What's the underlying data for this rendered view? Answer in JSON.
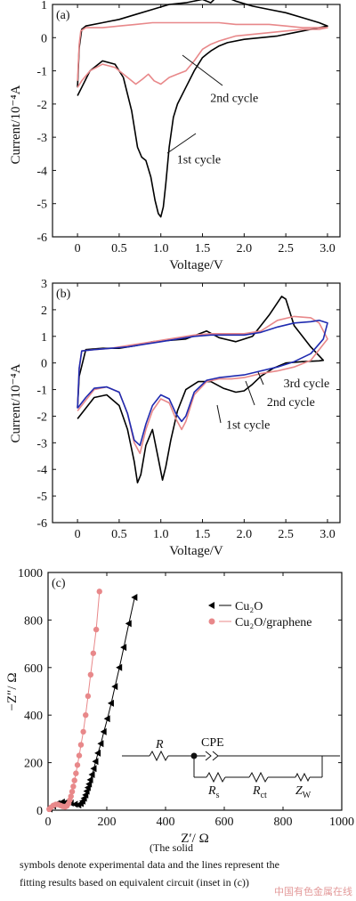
{
  "caption": {
    "line1": "(The solid",
    "line2": "symbols denote experimental data and the lines represent the",
    "line3": "fitting results based on equivalent circuit (inset in (c))"
  },
  "watermark": "中国有色金属在线",
  "chart_data": [
    {
      "type": "line",
      "panel_label": "(a)",
      "xlabel": "Voltage/V",
      "ylabel": "Current/10⁻⁴A",
      "xlim": [
        -0.3,
        3.15
      ],
      "ylim": [
        -6,
        1
      ],
      "xticks": [
        "0",
        "0.5",
        "1.0",
        "1.5",
        "2.0",
        "2.5",
        "3.0"
      ],
      "yticks": [
        "1",
        "0",
        "-1",
        "-2",
        "-3",
        "-4",
        "-5",
        "-6"
      ],
      "series": [
        {
          "name": "1st cycle",
          "color": "#000000",
          "x": [
            0.0,
            0.05,
            0.15,
            0.3,
            0.45,
            0.55,
            0.65,
            0.72,
            0.77,
            0.82,
            0.88,
            0.93,
            0.97,
            1.0,
            1.03,
            1.06,
            1.1,
            1.15,
            1.2,
            1.3,
            1.4,
            1.5,
            1.55,
            1.6,
            1.7,
            1.8,
            2.0,
            2.2,
            2.4,
            2.6,
            2.8,
            3.0,
            2.9,
            2.7,
            2.5,
            2.3,
            2.1,
            1.9,
            1.8,
            1.7,
            1.6,
            1.5,
            1.3,
            1.1,
            0.9,
            0.7,
            0.5,
            0.3,
            0.1,
            0.05,
            0.02,
            0.0
          ],
          "y": [
            -1.75,
            -1.5,
            -1.0,
            -0.7,
            -0.8,
            -1.2,
            -2.2,
            -3.3,
            -3.6,
            -3.7,
            -4.2,
            -4.9,
            -5.3,
            -5.4,
            -5.1,
            -4.4,
            -3.3,
            -2.4,
            -2.0,
            -1.5,
            -1.0,
            -0.6,
            -0.5,
            -0.4,
            -0.25,
            -0.15,
            -0.05,
            0.0,
            0.05,
            0.15,
            0.25,
            0.35,
            0.45,
            0.6,
            0.75,
            0.85,
            0.95,
            1.1,
            1.2,
            1.3,
            1.05,
            1.15,
            1.05,
            1.0,
            0.85,
            0.7,
            0.55,
            0.45,
            0.35,
            0.25,
            -0.3,
            -1.5
          ]
        },
        {
          "name": "2nd cycle",
          "color": "#e8888a",
          "x": [
            0.0,
            0.05,
            0.15,
            0.3,
            0.45,
            0.6,
            0.7,
            0.78,
            0.85,
            0.92,
            1.0,
            1.1,
            1.2,
            1.3,
            1.4,
            1.5,
            1.6,
            1.7,
            1.9,
            2.1,
            2.3,
            2.5,
            2.7,
            2.9,
            3.0,
            2.9,
            2.7,
            2.5,
            2.3,
            2.1,
            1.9,
            1.7,
            1.5,
            1.3,
            1.1,
            0.9,
            0.7,
            0.5,
            0.3,
            0.1,
            0.04,
            0.02,
            0.0
          ],
          "y": [
            -1.5,
            -1.3,
            -1.0,
            -0.8,
            -0.9,
            -1.2,
            -1.4,
            -1.25,
            -1.1,
            -1.3,
            -1.4,
            -1.2,
            -1.1,
            -1.0,
            -0.7,
            -0.35,
            -0.2,
            -0.1,
            0.05,
            0.1,
            0.15,
            0.2,
            0.25,
            0.25,
            0.3,
            0.3,
            0.3,
            0.35,
            0.4,
            0.4,
            0.4,
            0.45,
            0.45,
            0.45,
            0.45,
            0.45,
            0.4,
            0.35,
            0.3,
            0.3,
            0.2,
            -0.2,
            -1.3
          ]
        }
      ],
      "annotations": [
        {
          "text": "2nd cycle",
          "x": 1.55,
          "y": -1.8
        },
        {
          "text": "1st cycle",
          "x": 1.15,
          "y": -3.65
        }
      ]
    },
    {
      "type": "line",
      "panel_label": "(b)",
      "xlabel": "Voltage/V",
      "ylabel": "Current/10⁻⁴A",
      "xlim": [
        -0.3,
        3.15
      ],
      "ylim": [
        -6,
        3
      ],
      "xticks": [
        "0",
        "0.5",
        "1.0",
        "1.5",
        "2.0",
        "2.5",
        "3.0"
      ],
      "yticks": [
        "3",
        "2",
        "1",
        "0",
        "-1",
        "-2",
        "-3",
        "-4",
        "-5",
        "-6"
      ],
      "series": [
        {
          "name": "1st cycle",
          "color": "#000000",
          "x": [
            0.0,
            0.1,
            0.2,
            0.35,
            0.5,
            0.6,
            0.68,
            0.72,
            0.76,
            0.82,
            0.9,
            0.97,
            1.02,
            1.06,
            1.12,
            1.2,
            1.3,
            1.45,
            1.6,
            1.75,
            1.9,
            2.0,
            2.1,
            2.2,
            2.35,
            2.5,
            2.7,
            2.9,
            2.95,
            2.8,
            2.6,
            2.5,
            2.45,
            2.3,
            2.1,
            1.9,
            1.7,
            1.55,
            1.3,
            1.1,
            0.9,
            0.7,
            0.5,
            0.3,
            0.1,
            0.02,
            0.0
          ],
          "y": [
            -2.1,
            -1.7,
            -1.3,
            -1.2,
            -1.6,
            -2.5,
            -3.7,
            -4.5,
            -4.2,
            -3.1,
            -2.5,
            -3.6,
            -4.4,
            -3.9,
            -2.9,
            -1.8,
            -1.0,
            -0.7,
            -0.7,
            -0.95,
            -1.1,
            -1.05,
            -0.8,
            -0.5,
            -0.2,
            0.0,
            0.05,
            0.08,
            0.1,
            0.6,
            1.4,
            2.4,
            2.5,
            1.8,
            1.0,
            0.8,
            0.95,
            1.2,
            0.9,
            0.85,
            0.8,
            0.65,
            0.55,
            0.55,
            0.5,
            -0.5,
            -1.7
          ]
        },
        {
          "name": "2nd cycle",
          "color": "#e8888a",
          "x": [
            0.0,
            0.1,
            0.2,
            0.35,
            0.5,
            0.6,
            0.68,
            0.75,
            0.82,
            0.9,
            1.0,
            1.1,
            1.18,
            1.25,
            1.3,
            1.4,
            1.55,
            1.7,
            1.85,
            2.0,
            2.2,
            2.4,
            2.6,
            2.8,
            2.9,
            3.0,
            2.9,
            2.8,
            2.6,
            2.4,
            2.2,
            2.0,
            1.8,
            1.6,
            1.4,
            1.2,
            1.0,
            0.8,
            0.6,
            0.4,
            0.2,
            0.05,
            0.02,
            0.0
          ],
          "y": [
            -1.8,
            -1.4,
            -1.0,
            -0.9,
            -1.1,
            -1.9,
            -3.0,
            -3.4,
            -2.5,
            -1.8,
            -1.35,
            -1.5,
            -2.1,
            -2.5,
            -2.2,
            -1.2,
            -0.7,
            -0.6,
            -0.6,
            -0.55,
            -0.4,
            -0.3,
            -0.15,
            0.1,
            0.5,
            0.9,
            1.5,
            1.7,
            1.75,
            1.6,
            1.2,
            1.1,
            1.1,
            1.1,
            1.05,
            0.95,
            0.85,
            0.75,
            0.65,
            0.55,
            0.5,
            0.45,
            -0.2,
            -1.7
          ]
        },
        {
          "name": "3rd cycle",
          "color": "#1f2bb0",
          "x": [
            0.0,
            0.1,
            0.2,
            0.35,
            0.5,
            0.6,
            0.68,
            0.75,
            0.82,
            0.9,
            1.0,
            1.1,
            1.18,
            1.25,
            1.3,
            1.4,
            1.55,
            1.7,
            1.85,
            2.0,
            2.2,
            2.4,
            2.6,
            2.8,
            2.95,
            3.0,
            2.9,
            2.8,
            2.6,
            2.4,
            2.2,
            2.0,
            1.8,
            1.6,
            1.4,
            1.2,
            1.0,
            0.8,
            0.6,
            0.4,
            0.2,
            0.05,
            0.02,
            0.0
          ],
          "y": [
            -1.7,
            -1.3,
            -0.95,
            -0.9,
            -1.1,
            -1.9,
            -2.9,
            -3.1,
            -2.3,
            -1.6,
            -1.2,
            -1.35,
            -1.9,
            -2.2,
            -2.0,
            -1.1,
            -0.65,
            -0.55,
            -0.5,
            -0.45,
            -0.3,
            -0.15,
            0.05,
            0.35,
            0.9,
            1.5,
            1.6,
            1.55,
            1.5,
            1.35,
            1.15,
            1.05,
            1.05,
            1.05,
            1.0,
            0.9,
            0.8,
            0.7,
            0.6,
            0.55,
            0.5,
            0.45,
            -0.2,
            -1.7
          ]
        }
      ],
      "annotations": [
        {
          "text": "3rd cycle",
          "x": 2.43,
          "y": -0.75
        },
        {
          "text": "2nd cycle",
          "x": 2.23,
          "y": -1.45
        },
        {
          "text": "1st cycle",
          "x": 1.74,
          "y": -2.3
        }
      ]
    },
    {
      "type": "scatter",
      "panel_label": "(c)",
      "xlabel": "Z′/ Ω",
      "ylabel": "−Z″/ Ω",
      "xlim": [
        0,
        1000
      ],
      "ylim": [
        0,
        1000
      ],
      "xticks": [
        "0",
        "200",
        "400",
        "600",
        "800",
        "1000"
      ],
      "yticks": [
        "1000",
        "800",
        "600",
        "400",
        "200",
        "0"
      ],
      "legend": "top-right",
      "series": [
        {
          "name": "Cu₂O",
          "color": "#000000",
          "marker": "triangle-left",
          "x": [
            6,
            18,
            32,
            48,
            62,
            78,
            92,
            104,
            112,
            118,
            123,
            128,
            132,
            136,
            140,
            144,
            150,
            156,
            162,
            170,
            180,
            190,
            202,
            215,
            228,
            243,
            258,
            275,
            295
          ],
          "y": [
            5,
            18,
            28,
            34,
            34,
            30,
            25,
            22,
            28,
            38,
            50,
            64,
            80,
            95,
            110,
            128,
            150,
            175,
            205,
            240,
            280,
            330,
            385,
            450,
            520,
            600,
            685,
            785,
            895
          ]
        },
        {
          "name": "Cu₂O/graphene",
          "color": "#e8888a",
          "marker": "circle",
          "x": [
            4,
            10,
            18,
            26,
            34,
            42,
            50,
            58,
            64,
            70,
            74,
            78,
            82,
            86,
            90,
            95,
            100,
            106,
            112,
            120,
            128,
            136,
            145,
            154,
            164,
            175
          ],
          "y": [
            4,
            12,
            20,
            24,
            24,
            20,
            16,
            14,
            18,
            28,
            42,
            58,
            78,
            100,
            125,
            155,
            190,
            230,
            275,
            330,
            400,
            480,
            570,
            660,
            760,
            920
          ]
        }
      ],
      "inset": {
        "labels": {
          "R": "R",
          "CPE": "CPE",
          "Rs": "R",
          "Rs_sub": "s",
          "Rct": "R",
          "Rct_sub": "ct",
          "Zw": "Z",
          "Zw_sub": "W"
        }
      }
    }
  ]
}
